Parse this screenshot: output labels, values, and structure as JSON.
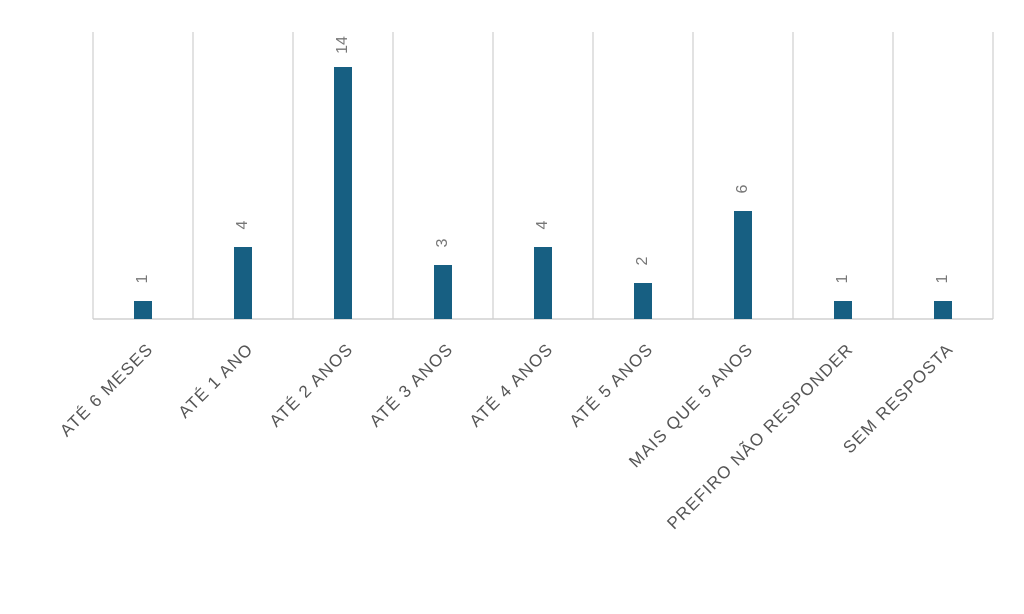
{
  "chart_data": {
    "type": "bar",
    "categories": [
      "ATÉ 6 MESES",
      "ATÉ 1 ANO",
      "ATÉ 2 ANOS",
      "ATÉ 3 ANOS",
      "ATÉ 4 ANOS",
      "ATÉ 5 ANOS",
      "MAIS QUE 5 ANOS",
      "PREFIRO NÃO RESPONDER",
      "SEM RESPOSTA"
    ],
    "values": [
      1,
      4,
      14,
      3,
      4,
      2,
      6,
      1,
      1
    ],
    "color": "#175f82",
    "grid": true
  }
}
